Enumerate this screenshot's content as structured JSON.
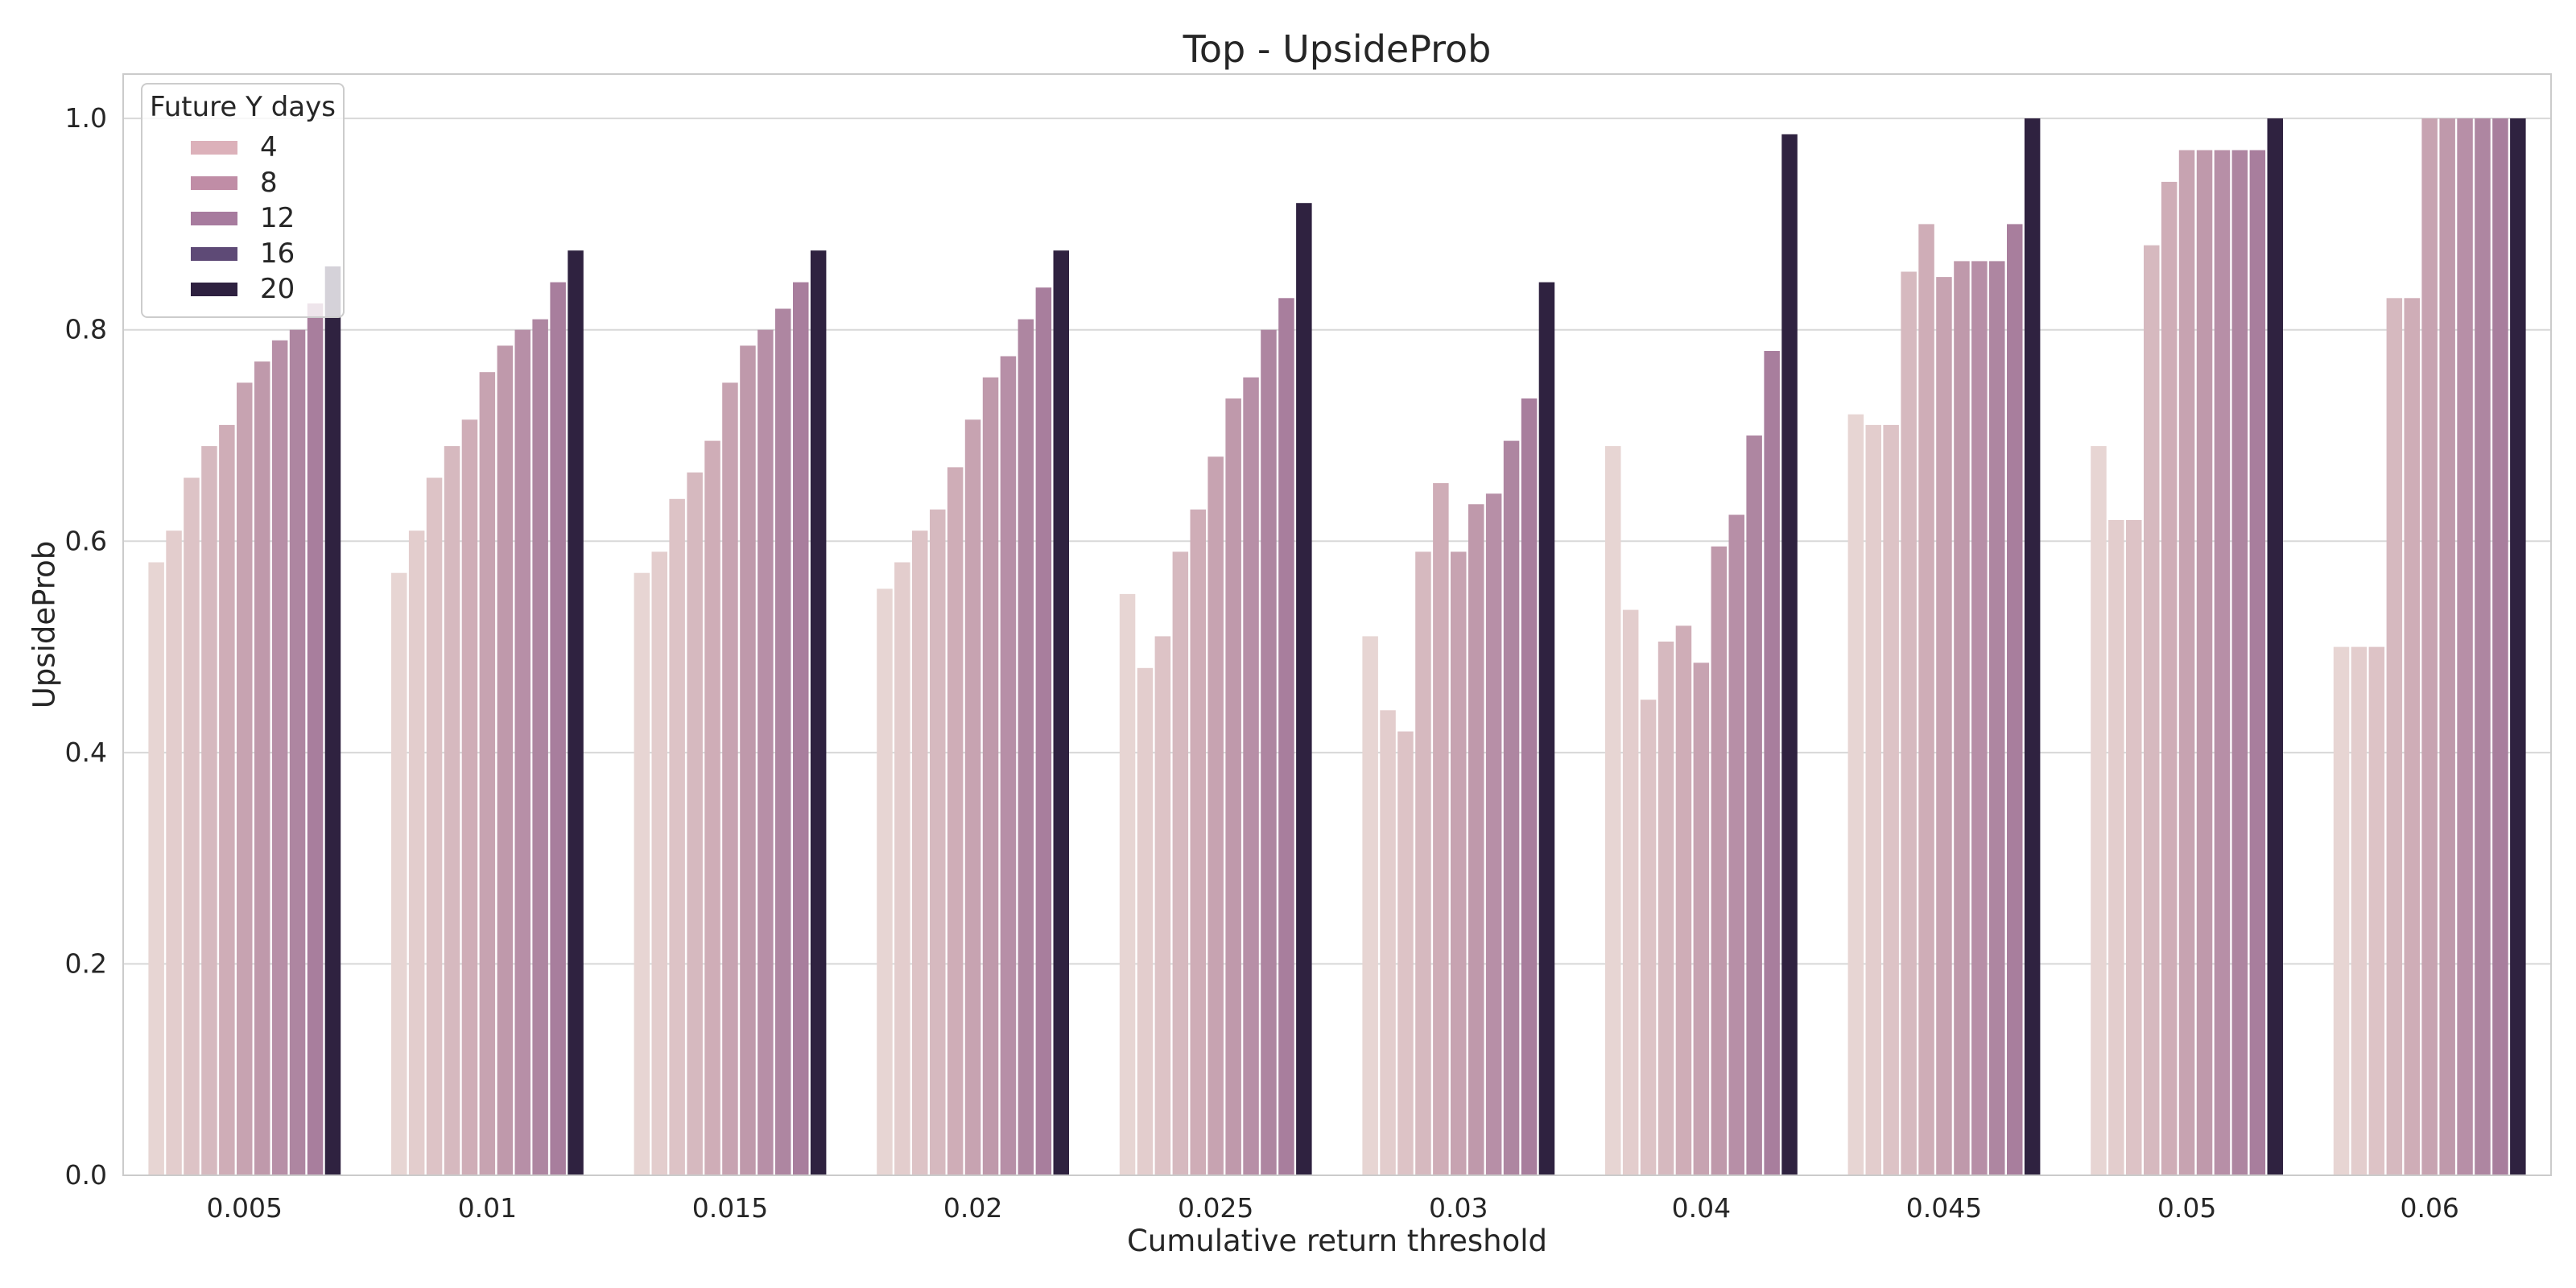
{
  "colors": {
    "background": "#ffffff",
    "grid": "#d8d8d8",
    "spine": "#cbcbcb",
    "text": "#262626",
    "legend_border": "#cccccc"
  },
  "chart_data": {
    "type": "bar",
    "title": "Top - UpsideProb",
    "xlabel": "Cumulative return threshold",
    "ylabel": "UpsideProb",
    "ylim": [
      0,
      1.042
    ],
    "yticks": [
      "0.0",
      "0.2",
      "0.4",
      "0.6",
      "0.8",
      "1.0"
    ],
    "grid": "horizontal",
    "categories": [
      "0.005",
      "0.01",
      "0.015",
      "0.02",
      "0.025",
      "0.03",
      "0.04",
      "0.045",
      "0.05",
      "0.06"
    ],
    "legend": {
      "title": "Future Y days",
      "position": "upper left",
      "entries": [
        {
          "label": "4",
          "color": "#dcb1ba"
        },
        {
          "label": "8",
          "color": "#c08da6"
        },
        {
          "label": "12",
          "color": "#a77b9e"
        },
        {
          "label": "16",
          "color": "#5e4a76"
        },
        {
          "label": "20",
          "color": "#2e2140"
        }
      ]
    },
    "series": [
      {
        "color": "#e7d5d3",
        "values": [
          0.58,
          0.57,
          0.57,
          0.555,
          0.55,
          0.51,
          0.69,
          0.72,
          0.69,
          0.5
        ]
      },
      {
        "color": "#e3cdcd",
        "values": [
          0.61,
          0.61,
          0.59,
          0.58,
          0.48,
          0.44,
          0.535,
          0.71,
          0.62,
          0.5
        ]
      },
      {
        "color": "#ddc3c6",
        "values": [
          0.66,
          0.66,
          0.64,
          0.61,
          0.51,
          0.42,
          0.45,
          0.71,
          0.62,
          0.5
        ]
      },
      {
        "color": "#d6b9bf",
        "values": [
          0.69,
          0.69,
          0.665,
          0.63,
          0.59,
          0.59,
          0.505,
          0.855,
          0.88,
          0.83
        ]
      },
      {
        "color": "#cfadb7",
        "values": [
          0.71,
          0.715,
          0.695,
          0.67,
          0.63,
          0.655,
          0.52,
          0.9,
          0.94,
          0.83
        ]
      },
      {
        "color": "#c7a3b1",
        "values": [
          0.75,
          0.76,
          0.75,
          0.715,
          0.68,
          0.59,
          0.485,
          0.85,
          0.97,
          1.0
        ]
      },
      {
        "color": "#bf99ab",
        "values": [
          0.77,
          0.785,
          0.785,
          0.755,
          0.735,
          0.635,
          0.595,
          0.865,
          0.97,
          1.0
        ]
      },
      {
        "color": "#b78fa7",
        "values": [
          0.79,
          0.8,
          0.8,
          0.775,
          0.755,
          0.645,
          0.625,
          0.865,
          0.97,
          1.0
        ]
      },
      {
        "color": "#ae86a1",
        "values": [
          0.8,
          0.81,
          0.82,
          0.81,
          0.8,
          0.695,
          0.7,
          0.865,
          0.97,
          1.0
        ]
      },
      {
        "color": "#a87e9d",
        "values": [
          0.825,
          0.845,
          0.845,
          0.84,
          0.83,
          0.735,
          0.78,
          0.9,
          0.97,
          1.0
        ]
      },
      {
        "color": "#2f2240",
        "values": [
          0.86,
          0.875,
          0.875,
          0.875,
          0.92,
          0.845,
          0.985,
          1.0,
          1.0,
          1.0
        ]
      }
    ]
  }
}
